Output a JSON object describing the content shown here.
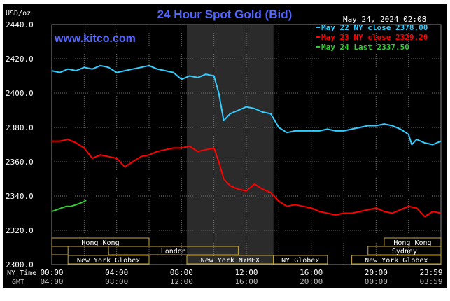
{
  "chart_data": {
    "type": "line",
    "title": "24 Hour Spot Gold (Bid)",
    "unit_label": "USD/oz",
    "brand": "www.kitco.com",
    "date_stamp": "May 24, 2024 02:08",
    "ylim": [
      2300,
      2440
    ],
    "y_ticks": [
      {
        "value": 2440,
        "label": "2440.0"
      },
      {
        "value": 2420,
        "label": "2420.0"
      },
      {
        "value": 2400,
        "label": "2400.0"
      },
      {
        "value": 2380,
        "label": "2380.0"
      },
      {
        "value": 2360,
        "label": "2360.0"
      },
      {
        "value": 2340,
        "label": "2340.0"
      },
      {
        "value": 2320,
        "label": "2320.0"
      },
      {
        "value": 2300,
        "label": "2300.0"
      }
    ],
    "xlim": [
      0,
      24
    ],
    "x_row_labels": {
      "ny": "NY Time",
      "gmt": "GMT"
    },
    "x_ticks": [
      {
        "hour": 0,
        "ny": "00:00",
        "gmt": "04:00"
      },
      {
        "hour": 4,
        "ny": "04:00",
        "gmt": "08:00"
      },
      {
        "hour": 8,
        "ny": "08:00",
        "gmt": "12:00"
      },
      {
        "hour": 12,
        "ny": "12:00",
        "gmt": "16:00"
      },
      {
        "hour": 16,
        "ny": "16:00",
        "gmt": "20:00"
      },
      {
        "hour": 20,
        "ny": "20:00",
        "gmt": "00:00"
      },
      {
        "hour": 23.98,
        "ny": "23:59",
        "gmt": "03:59"
      }
    ],
    "shaded_session": {
      "start_hour": 8.33,
      "end_hour": 13.67
    },
    "market_sessions": [
      {
        "label": "Hong Kong",
        "start_hour": 0,
        "end_hour": 6,
        "row": 0
      },
      {
        "label": "",
        "start_hour": 0,
        "end_hour": 1,
        "row": 1
      },
      {
        "label": "London",
        "start_hour": 3.5,
        "end_hour": 11.5,
        "row": 1
      },
      {
        "label": "New York Globex",
        "start_hour": 1,
        "end_hour": 6,
        "row": 2
      },
      {
        "label": "New York NYMEX",
        "start_hour": 8.33,
        "end_hour": 13.67,
        "row": 2
      },
      {
        "label": "NY Globex",
        "start_hour": 13.67,
        "end_hour": 17,
        "row": 2
      },
      {
        "label": "Hong Kong",
        "start_hour": 20.5,
        "end_hour": 24,
        "row": 0
      },
      {
        "label": "Sydney",
        "start_hour": 19.5,
        "end_hour": 24,
        "row": 1
      },
      {
        "label": "New York Globex",
        "start_hour": 18.5,
        "end_hour": 24,
        "row": 2
      }
    ],
    "legend": {
      "position": "top-right"
    },
    "series": [
      {
        "name": "May 22 NY close 2378.00",
        "color": "#33ccff",
        "x": [
          0,
          0.5,
          1,
          1.5,
          2,
          2.5,
          3,
          3.5,
          4,
          4.5,
          5,
          5.5,
          6,
          6.5,
          7,
          7.5,
          8,
          8.5,
          9,
          9.5,
          10,
          10.3,
          10.6,
          11,
          11.5,
          12,
          12.5,
          13,
          13.5,
          14,
          14.5,
          15,
          15.5,
          16,
          16.5,
          17,
          17.5,
          18,
          18.5,
          19,
          19.5,
          20,
          20.5,
          21,
          21.5,
          22,
          22.2,
          22.5,
          23,
          23.5,
          24
        ],
        "y": [
          2413,
          2412,
          2414,
          2413,
          2415,
          2414,
          2416,
          2415,
          2412,
          2413,
          2414,
          2415,
          2416,
          2414,
          2413,
          2412,
          2408,
          2410,
          2409,
          2411,
          2410,
          2400,
          2384,
          2388,
          2390,
          2392,
          2391,
          2389,
          2388,
          2380,
          2377,
          2378,
          2378,
          2378,
          2378,
          2379,
          2378,
          2378,
          2379,
          2380,
          2381,
          2381,
          2382,
          2381,
          2379,
          2376,
          2370,
          2373,
          2371,
          2370,
          2372
        ]
      },
      {
        "name": "May 23 NY close 2329.20",
        "color": "#ff0000",
        "x": [
          0,
          0.5,
          1,
          1.5,
          2,
          2.5,
          3,
          3.5,
          4,
          4.5,
          5,
          5.5,
          6,
          6.5,
          7,
          7.5,
          8,
          8.5,
          9,
          9.5,
          10,
          10.3,
          10.6,
          11,
          11.5,
          12,
          12.5,
          13,
          13.5,
          14,
          14.5,
          15,
          15.5,
          16,
          16.5,
          17,
          17.5,
          18,
          18.5,
          19,
          19.5,
          20,
          20.5,
          21,
          21.5,
          22,
          22.5,
          23,
          23.5,
          24
        ],
        "y": [
          2372,
          2372,
          2373,
          2371,
          2368,
          2362,
          2364,
          2363,
          2362,
          2357,
          2360,
          2363,
          2364,
          2366,
          2367,
          2368,
          2368,
          2369,
          2366,
          2367,
          2368,
          2360,
          2350,
          2346,
          2344,
          2343,
          2347,
          2344,
          2342,
          2337,
          2334,
          2335,
          2334,
          2333,
          2331,
          2330,
          2329,
          2330,
          2330,
          2331,
          2332,
          2333,
          2331,
          2330,
          2332,
          2334,
          2333,
          2328,
          2331,
          2330
        ]
      },
      {
        "name": "May 24 Last 2337.50",
        "color": "#33cc33",
        "x": [
          0,
          0.3,
          0.6,
          0.9,
          1.2,
          1.5,
          1.8,
          2.13
        ],
        "y": [
          2331,
          2332,
          2333,
          2334,
          2334,
          2335,
          2336,
          2337.5
        ]
      }
    ]
  }
}
